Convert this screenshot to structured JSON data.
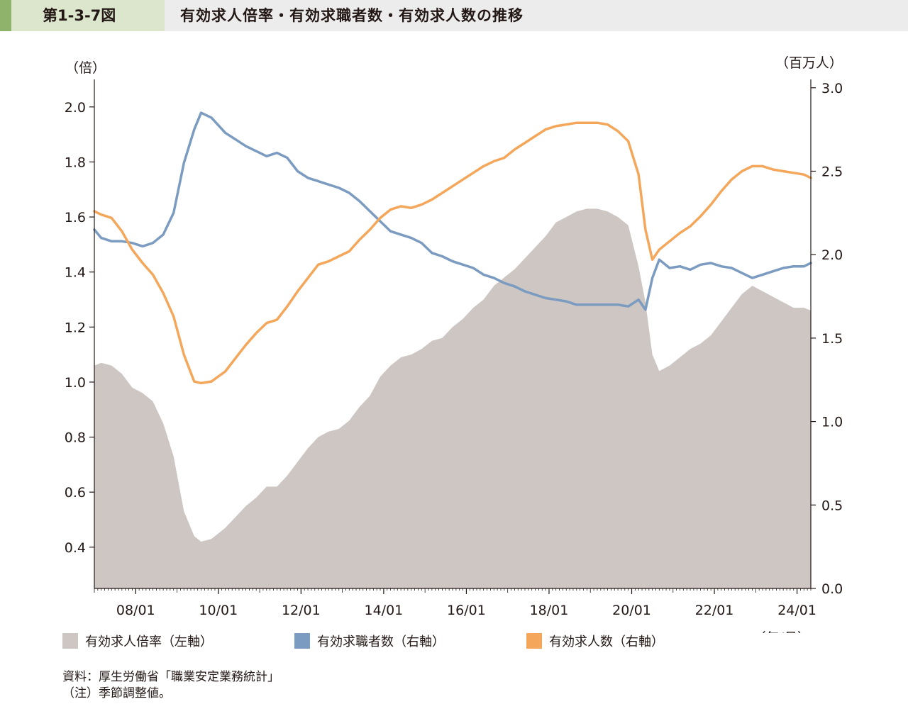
{
  "header": {
    "figure_number": "第1-3-7図",
    "title": "有効求人倍率・有効求職者数・有効求人数の推移"
  },
  "colors": {
    "ratio_area": "#cdc6c3",
    "job_seekers": "#7b9bc0",
    "job_openings": "#f4a75a",
    "header_bg": "#ececec",
    "header_accent": "#8fb36a",
    "header_label_bg": "#dbe6cc"
  },
  "legend": {
    "ratio": "有効求人倍率（左軸）",
    "seekers": "有効求職者数（右軸）",
    "openings": "有効求人数（右軸）"
  },
  "notes": {
    "source": "資料：厚生労働省「職業安定業務統計」",
    "note": "（注）季節調整値。"
  },
  "chart_data": {
    "type": "line",
    "title": "",
    "x_unit_label": "（年/月）",
    "x_tick_labels": [
      "08/01",
      "10/01",
      "12/01",
      "14/01",
      "16/01",
      "18/01",
      "20/01",
      "22/01",
      "24/01"
    ],
    "x_range": [
      "2007/01",
      "2024/05"
    ],
    "left_axis": {
      "unit_label": "（倍）",
      "range": [
        0.25,
        2.1
      ],
      "tick_labels": [
        "0.4",
        "0.6",
        "0.8",
        "1.0",
        "1.2",
        "1.4",
        "1.6",
        "1.8",
        "2.0"
      ]
    },
    "right_axis": {
      "unit_label": "（百万人）",
      "range": [
        0.0,
        3.05
      ],
      "tick_labels": [
        "0.0",
        "0.5",
        "1.0",
        "1.5",
        "2.0",
        "2.5",
        "3.0"
      ]
    },
    "legend_position": "bottom",
    "grid": false,
    "series": [
      {
        "name": "有効求人倍率（左軸）",
        "type": "area",
        "axis": "left",
        "points": [
          [
            "2007/01",
            1.06
          ],
          [
            "2007/03",
            1.07
          ],
          [
            "2007/06",
            1.06
          ],
          [
            "2007/09",
            1.03
          ],
          [
            "2007/12",
            0.98
          ],
          [
            "2008/03",
            0.96
          ],
          [
            "2008/06",
            0.93
          ],
          [
            "2008/09",
            0.85
          ],
          [
            "2008/12",
            0.73
          ],
          [
            "2009/03",
            0.53
          ],
          [
            "2009/06",
            0.44
          ],
          [
            "2009/08",
            0.42
          ],
          [
            "2009/11",
            0.43
          ],
          [
            "2010/03",
            0.47
          ],
          [
            "2010/06",
            0.51
          ],
          [
            "2010/09",
            0.55
          ],
          [
            "2010/12",
            0.58
          ],
          [
            "2011/03",
            0.62
          ],
          [
            "2011/06",
            0.62
          ],
          [
            "2011/09",
            0.66
          ],
          [
            "2011/12",
            0.71
          ],
          [
            "2012/03",
            0.76
          ],
          [
            "2012/06",
            0.8
          ],
          [
            "2012/09",
            0.82
          ],
          [
            "2012/12",
            0.83
          ],
          [
            "2013/03",
            0.86
          ],
          [
            "2013/06",
            0.91
          ],
          [
            "2013/09",
            0.95
          ],
          [
            "2013/12",
            1.02
          ],
          [
            "2014/03",
            1.06
          ],
          [
            "2014/06",
            1.09
          ],
          [
            "2014/09",
            1.1
          ],
          [
            "2014/12",
            1.12
          ],
          [
            "2015/03",
            1.15
          ],
          [
            "2015/06",
            1.16
          ],
          [
            "2015/09",
            1.2
          ],
          [
            "2015/12",
            1.23
          ],
          [
            "2016/03",
            1.27
          ],
          [
            "2016/06",
            1.3
          ],
          [
            "2016/09",
            1.35
          ],
          [
            "2016/12",
            1.38
          ],
          [
            "2017/03",
            1.41
          ],
          [
            "2017/06",
            1.45
          ],
          [
            "2017/09",
            1.49
          ],
          [
            "2017/12",
            1.53
          ],
          [
            "2018/03",
            1.58
          ],
          [
            "2018/06",
            1.6
          ],
          [
            "2018/09",
            1.62
          ],
          [
            "2018/12",
            1.63
          ],
          [
            "2019/03",
            1.63
          ],
          [
            "2019/06",
            1.62
          ],
          [
            "2019/09",
            1.6
          ],
          [
            "2019/12",
            1.57
          ],
          [
            "2020/03",
            1.42
          ],
          [
            "2020/05",
            1.29
          ],
          [
            "2020/07",
            1.1
          ],
          [
            "2020/09",
            1.04
          ],
          [
            "2020/12",
            1.06
          ],
          [
            "2021/03",
            1.09
          ],
          [
            "2021/06",
            1.12
          ],
          [
            "2021/09",
            1.14
          ],
          [
            "2021/12",
            1.17
          ],
          [
            "2022/03",
            1.22
          ],
          [
            "2022/06",
            1.27
          ],
          [
            "2022/09",
            1.32
          ],
          [
            "2022/12",
            1.35
          ],
          [
            "2023/03",
            1.33
          ],
          [
            "2023/06",
            1.31
          ],
          [
            "2023/09",
            1.29
          ],
          [
            "2023/12",
            1.27
          ],
          [
            "2024/03",
            1.27
          ],
          [
            "2024/05",
            1.26
          ]
        ]
      },
      {
        "name": "有効求職者数（右軸）",
        "type": "line",
        "axis": "right",
        "points": [
          [
            "2007/01",
            2.15
          ],
          [
            "2007/03",
            2.1
          ],
          [
            "2007/06",
            2.08
          ],
          [
            "2007/09",
            2.08
          ],
          [
            "2007/12",
            2.07
          ],
          [
            "2008/03",
            2.05
          ],
          [
            "2008/06",
            2.07
          ],
          [
            "2008/09",
            2.12
          ],
          [
            "2008/12",
            2.25
          ],
          [
            "2009/03",
            2.55
          ],
          [
            "2009/06",
            2.75
          ],
          [
            "2009/08",
            2.85
          ],
          [
            "2009/11",
            2.82
          ],
          [
            "2010/03",
            2.73
          ],
          [
            "2010/06",
            2.69
          ],
          [
            "2010/09",
            2.65
          ],
          [
            "2010/12",
            2.62
          ],
          [
            "2011/03",
            2.59
          ],
          [
            "2011/06",
            2.61
          ],
          [
            "2011/09",
            2.58
          ],
          [
            "2011/12",
            2.5
          ],
          [
            "2012/03",
            2.46
          ],
          [
            "2012/06",
            2.44
          ],
          [
            "2012/09",
            2.42
          ],
          [
            "2012/12",
            2.4
          ],
          [
            "2013/03",
            2.37
          ],
          [
            "2013/06",
            2.32
          ],
          [
            "2013/09",
            2.26
          ],
          [
            "2013/12",
            2.2
          ],
          [
            "2014/03",
            2.14
          ],
          [
            "2014/06",
            2.12
          ],
          [
            "2014/09",
            2.1
          ],
          [
            "2014/12",
            2.07
          ],
          [
            "2015/03",
            2.01
          ],
          [
            "2015/06",
            1.99
          ],
          [
            "2015/09",
            1.96
          ],
          [
            "2015/12",
            1.94
          ],
          [
            "2016/03",
            1.92
          ],
          [
            "2016/06",
            1.88
          ],
          [
            "2016/09",
            1.86
          ],
          [
            "2016/12",
            1.83
          ],
          [
            "2017/03",
            1.81
          ],
          [
            "2017/06",
            1.78
          ],
          [
            "2017/09",
            1.76
          ],
          [
            "2017/12",
            1.74
          ],
          [
            "2018/03",
            1.73
          ],
          [
            "2018/06",
            1.72
          ],
          [
            "2018/09",
            1.7
          ],
          [
            "2018/12",
            1.7
          ],
          [
            "2019/03",
            1.7
          ],
          [
            "2019/06",
            1.7
          ],
          [
            "2019/09",
            1.7
          ],
          [
            "2019/12",
            1.69
          ],
          [
            "2020/03",
            1.73
          ],
          [
            "2020/05",
            1.67
          ],
          [
            "2020/07",
            1.86
          ],
          [
            "2020/09",
            1.97
          ],
          [
            "2020/12",
            1.92
          ],
          [
            "2021/03",
            1.93
          ],
          [
            "2021/06",
            1.91
          ],
          [
            "2021/09",
            1.94
          ],
          [
            "2021/12",
            1.95
          ],
          [
            "2022/03",
            1.93
          ],
          [
            "2022/06",
            1.92
          ],
          [
            "2022/09",
            1.89
          ],
          [
            "2022/12",
            1.86
          ],
          [
            "2023/03",
            1.88
          ],
          [
            "2023/06",
            1.9
          ],
          [
            "2023/09",
            1.92
          ],
          [
            "2023/12",
            1.93
          ],
          [
            "2024/03",
            1.93
          ],
          [
            "2024/05",
            1.95
          ]
        ]
      },
      {
        "name": "有効求人数（右軸）",
        "type": "line",
        "axis": "right",
        "points": [
          [
            "2007/01",
            2.26
          ],
          [
            "2007/03",
            2.24
          ],
          [
            "2007/06",
            2.22
          ],
          [
            "2007/09",
            2.14
          ],
          [
            "2007/12",
            2.03
          ],
          [
            "2008/03",
            1.95
          ],
          [
            "2008/06",
            1.88
          ],
          [
            "2008/09",
            1.77
          ],
          [
            "2008/12",
            1.63
          ],
          [
            "2009/03",
            1.4
          ],
          [
            "2009/06",
            1.24
          ],
          [
            "2009/08",
            1.23
          ],
          [
            "2009/11",
            1.24
          ],
          [
            "2010/03",
            1.3
          ],
          [
            "2010/06",
            1.38
          ],
          [
            "2010/09",
            1.46
          ],
          [
            "2010/12",
            1.53
          ],
          [
            "2011/03",
            1.59
          ],
          [
            "2011/06",
            1.61
          ],
          [
            "2011/09",
            1.69
          ],
          [
            "2011/12",
            1.78
          ],
          [
            "2012/03",
            1.86
          ],
          [
            "2012/06",
            1.94
          ],
          [
            "2012/09",
            1.96
          ],
          [
            "2012/12",
            1.99
          ],
          [
            "2013/03",
            2.02
          ],
          [
            "2013/06",
            2.09
          ],
          [
            "2013/09",
            2.15
          ],
          [
            "2013/12",
            2.22
          ],
          [
            "2014/03",
            2.27
          ],
          [
            "2014/06",
            2.29
          ],
          [
            "2014/09",
            2.28
          ],
          [
            "2014/12",
            2.3
          ],
          [
            "2015/03",
            2.33
          ],
          [
            "2015/06",
            2.37
          ],
          [
            "2015/09",
            2.41
          ],
          [
            "2015/12",
            2.45
          ],
          [
            "2016/03",
            2.49
          ],
          [
            "2016/06",
            2.53
          ],
          [
            "2016/09",
            2.56
          ],
          [
            "2016/12",
            2.58
          ],
          [
            "2017/03",
            2.63
          ],
          [
            "2017/06",
            2.67
          ],
          [
            "2017/09",
            2.71
          ],
          [
            "2017/12",
            2.75
          ],
          [
            "2018/03",
            2.77
          ],
          [
            "2018/06",
            2.78
          ],
          [
            "2018/09",
            2.79
          ],
          [
            "2018/12",
            2.79
          ],
          [
            "2019/03",
            2.79
          ],
          [
            "2019/06",
            2.78
          ],
          [
            "2019/09",
            2.74
          ],
          [
            "2019/12",
            2.68
          ],
          [
            "2020/03",
            2.48
          ],
          [
            "2020/05",
            2.15
          ],
          [
            "2020/07",
            1.97
          ],
          [
            "2020/09",
            2.03
          ],
          [
            "2020/12",
            2.08
          ],
          [
            "2021/03",
            2.13
          ],
          [
            "2021/06",
            2.17
          ],
          [
            "2021/09",
            2.23
          ],
          [
            "2021/12",
            2.3
          ],
          [
            "2022/03",
            2.38
          ],
          [
            "2022/06",
            2.45
          ],
          [
            "2022/09",
            2.5
          ],
          [
            "2022/12",
            2.53
          ],
          [
            "2023/03",
            2.53
          ],
          [
            "2023/06",
            2.51
          ],
          [
            "2023/09",
            2.5
          ],
          [
            "2023/12",
            2.49
          ],
          [
            "2024/03",
            2.48
          ],
          [
            "2024/05",
            2.46
          ]
        ]
      }
    ]
  }
}
